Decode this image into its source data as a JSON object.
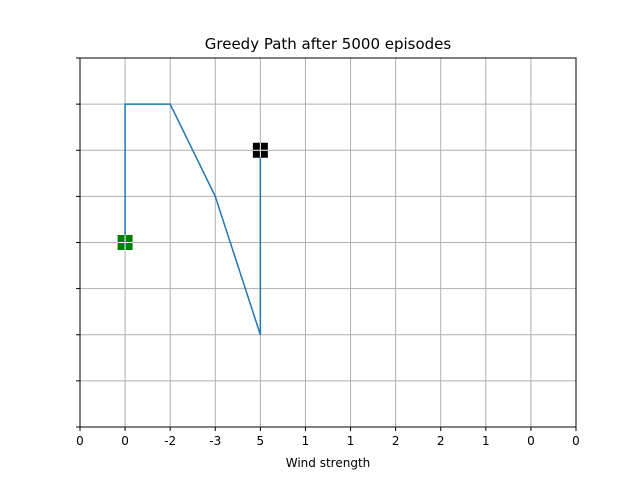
{
  "chart_data": {
    "type": "line",
    "title": "Greedy Path after 5000 episodes",
    "xlabel": "Wind strength",
    "ylabel": "",
    "xlim": [
      0,
      11
    ],
    "ylim": [
      0,
      8
    ],
    "x_tick_labels": [
      "0",
      "0",
      "-2",
      "-3",
      "5",
      "1",
      "1",
      "2",
      "2",
      "1",
      "0",
      "0"
    ],
    "y_ticks": [
      0,
      1,
      2,
      3,
      4,
      5,
      6,
      7,
      8
    ],
    "y_tick_labels_shown": false,
    "grid": true,
    "series": [
      {
        "points": [
          [
            1,
            4
          ],
          [
            1,
            7
          ],
          [
            2,
            7
          ],
          [
            3,
            5
          ],
          [
            4,
            2
          ],
          [
            4,
            6
          ]
        ],
        "color": "#1f77b4"
      }
    ],
    "markers": [
      {
        "role": "start",
        "x": 1,
        "y": 4,
        "shape": "square",
        "color": "#008000"
      },
      {
        "role": "goal",
        "x": 4,
        "y": 6,
        "shape": "square",
        "color": "#000000"
      }
    ]
  }
}
